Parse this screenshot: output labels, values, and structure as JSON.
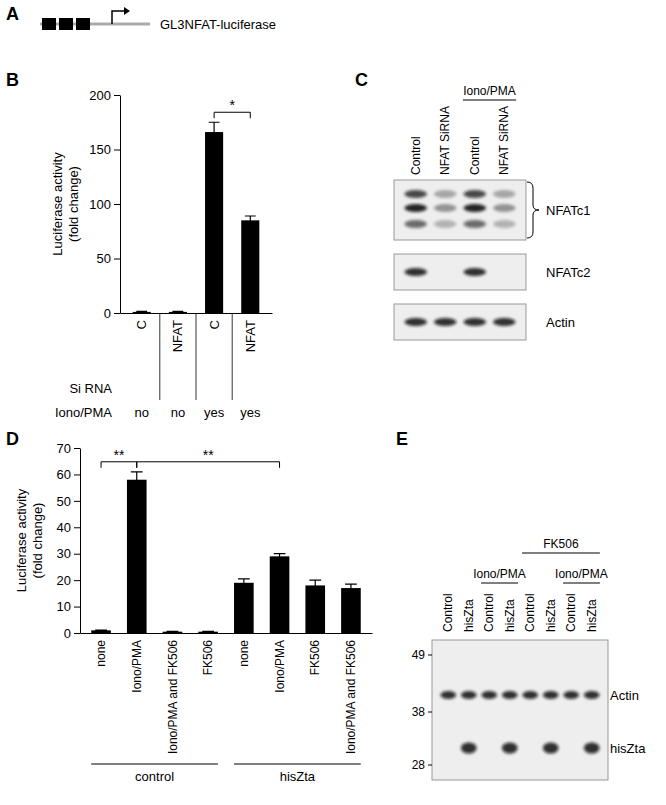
{
  "chart_data": [
    {
      "type": "diagram",
      "panel": "A",
      "label": "GL3NFAT-luciferase"
    },
    {
      "type": "bar",
      "panel": "B",
      "y_label": "Luciferase activity\n(fold change)",
      "categories": [
        "C",
        "NFAT",
        "C",
        "NFAT"
      ],
      "category_title": "Si RNA",
      "rows": [
        {
          "name": "Iono/PMA",
          "values": [
            "no",
            "no",
            "yes",
            "yes"
          ]
        }
      ],
      "values": [
        1,
        1,
        166,
        85
      ],
      "errors": [
        0.5,
        0.5,
        9,
        4
      ],
      "color": "#000000",
      "ylim": [
        0,
        200
      ],
      "yticks": [
        0,
        50,
        100,
        150,
        200
      ],
      "annotations": [
        {
          "text": "*",
          "between": [
            2,
            3
          ]
        }
      ]
    },
    {
      "type": "blot",
      "panel": "C",
      "lanes": [
        "Control",
        "NFAT SiRNA",
        "Control",
        "NFAT SiRNA"
      ],
      "groups": [
        {
          "name": "Iono/PMA",
          "between": [
            2,
            3
          ]
        }
      ],
      "bands": [
        "NFATc1",
        "NFATc2",
        "Actin"
      ]
    },
    {
      "type": "bar",
      "panel": "D",
      "y_label": "Luciferase activity\n(fold change)",
      "categories": [
        "none",
        "Iono/PMA",
        "Iono/PMA and FK506",
        "FK506",
        "none",
        "Iono/PMA",
        "FK506",
        "Iono/PMA and FK506"
      ],
      "groups": [
        {
          "name": "control",
          "between": [
            0,
            3
          ]
        },
        {
          "name": "hisZta",
          "between": [
            4,
            7
          ]
        }
      ],
      "values": [
        1,
        58,
        0.5,
        0.5,
        19,
        29,
        18,
        17
      ],
      "errors": [
        0.1,
        3,
        0.1,
        0.1,
        1.5,
        1,
        2,
        1.5
      ],
      "color": "#000000",
      "ylim": [
        0,
        70
      ],
      "yticks": [
        0,
        10,
        20,
        30,
        40,
        50,
        60,
        70
      ],
      "annotations": [
        {
          "text": "**",
          "between": [
            0,
            1
          ]
        },
        {
          "text": "**",
          "between": [
            1,
            5
          ]
        }
      ]
    },
    {
      "type": "blot",
      "panel": "E",
      "lanes": [
        "Control",
        "hisZta",
        "Control",
        "hisZta",
        "Control",
        "hisZta",
        "Control",
        "hisZta"
      ],
      "groups": [
        {
          "name": "Iono/PMA",
          "between": [
            2,
            3
          ]
        },
        {
          "name": "FK506",
          "between": [
            4,
            7
          ]
        },
        {
          "name": "Iono/PMA",
          "between": [
            6,
            7
          ]
        }
      ],
      "bands": [
        "Actin",
        "hisZta"
      ],
      "size_markers": [
        49,
        38,
        28
      ]
    }
  ]
}
